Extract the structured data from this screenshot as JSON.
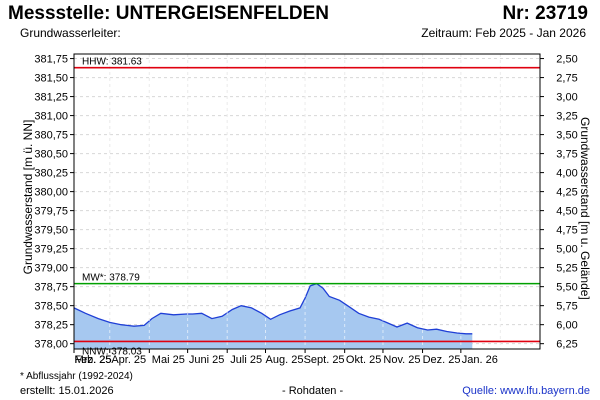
{
  "header": {
    "title": "Messstelle: UNTERGEISENFELDEN",
    "number": "Nr: 23719",
    "aquifer_label": "Grundwasserleiter:",
    "period": "Zeitraum: Feb 2025 - Jan 2026"
  },
  "footer": {
    "footnote": "* Abflussjahr (1992-2024)",
    "created": "erstellt:  15.01.2026",
    "raw_data": "- Rohdaten -",
    "source": "Quelle: www.lfu.bayern.de"
  },
  "chart_data": {
    "type": "area",
    "ylabel": "Grundwasserstand [m ü. NN]",
    "ylabel_right": "Grundwasserstand [m u. Gelände]",
    "ylim": [
      377.93,
      381.81
    ],
    "yticks": [
      378.0,
      378.25,
      378.5,
      378.75,
      379.0,
      379.25,
      379.5,
      379.75,
      380.0,
      380.25,
      380.5,
      380.75,
      381.0,
      381.25,
      381.5,
      381.75
    ],
    "ytick_labels": [
      "378,00",
      "378,25",
      "378,50",
      "378,75",
      "379,00",
      "379,25",
      "379,50",
      "379,75",
      "380,00",
      "380,25",
      "380,50",
      "380,75",
      "381,00",
      "381,25",
      "381,50",
      "381,75"
    ],
    "right_ticks": [
      2.5,
      2.75,
      3.0,
      3.25,
      3.5,
      3.75,
      4.0,
      4.25,
      4.5,
      4.75,
      5.0,
      5.25,
      5.5,
      5.75,
      6.0,
      6.25
    ],
    "right_tick_labels": [
      "2,50",
      "2,75",
      "3,00",
      "3,25",
      "3,50",
      "3,75",
      "4,00",
      "4,25",
      "4,50",
      "4,75",
      "5,00",
      "5,25",
      "5,50",
      "5,75",
      "6,00",
      "6,25"
    ],
    "right_axis_ground_level": 384.25,
    "x_ticks": [
      "Feb. 25",
      "Mrz. 25",
      "Apr. 25",
      "Mai 25",
      "Juni 25",
      "Juli 25",
      "Aug. 25",
      "Sept. 25",
      "Okt. 25",
      "Nov. 25",
      "Dez. 25",
      "Jan. 26"
    ],
    "xlim": [
      "2025-02-01",
      "2026-02-01"
    ],
    "grid": true,
    "fill_color": "#a6c8f0",
    "line_color": "#1f3fd6",
    "reference_lines": [
      {
        "label": "HHW: 381.63",
        "value": 381.63,
        "color": "#e0000f",
        "label_position": "above"
      },
      {
        "label": "MW*: 378.79",
        "value": 378.79,
        "color": "#00a000",
        "label_position": "above"
      },
      {
        "label": "NNW: 378.03",
        "value": 378.03,
        "color": "#e0000f",
        "label_position": "below"
      }
    ],
    "series": [
      {
        "x": [
          "2025-02-01",
          "2025-02-10",
          "2025-02-20",
          "2025-03-01",
          "2025-03-10",
          "2025-03-20",
          "2025-03-28",
          "2025-04-03",
          "2025-04-10",
          "2025-04-20",
          "2025-04-30",
          "2025-05-05",
          "2025-05-12",
          "2025-05-20",
          "2025-05-28",
          "2025-06-05",
          "2025-06-12",
          "2025-06-20",
          "2025-06-28",
          "2025-07-05",
          "2025-07-12",
          "2025-07-20",
          "2025-07-28",
          "2025-08-01",
          "2025-08-05",
          "2025-08-10",
          "2025-08-15",
          "2025-08-20",
          "2025-08-28",
          "2025-09-05",
          "2025-09-12",
          "2025-09-20",
          "2025-09-28",
          "2025-10-05",
          "2025-10-12",
          "2025-10-20",
          "2025-10-28",
          "2025-11-05",
          "2025-11-12",
          "2025-11-20",
          "2025-11-28",
          "2025-12-05",
          "2025-12-10"
        ],
        "y": [
          378.47,
          378.4,
          378.33,
          378.28,
          378.25,
          378.23,
          378.24,
          378.33,
          378.4,
          378.38,
          378.39,
          378.39,
          378.4,
          378.33,
          378.36,
          378.45,
          378.5,
          378.47,
          378.4,
          378.32,
          378.38,
          378.43,
          378.47,
          378.6,
          378.76,
          378.79,
          378.73,
          378.62,
          378.57,
          378.48,
          378.4,
          378.35,
          378.32,
          378.27,
          378.22,
          378.27,
          378.21,
          378.18,
          378.19,
          378.16,
          378.14,
          378.13,
          378.13
        ]
      }
    ]
  }
}
